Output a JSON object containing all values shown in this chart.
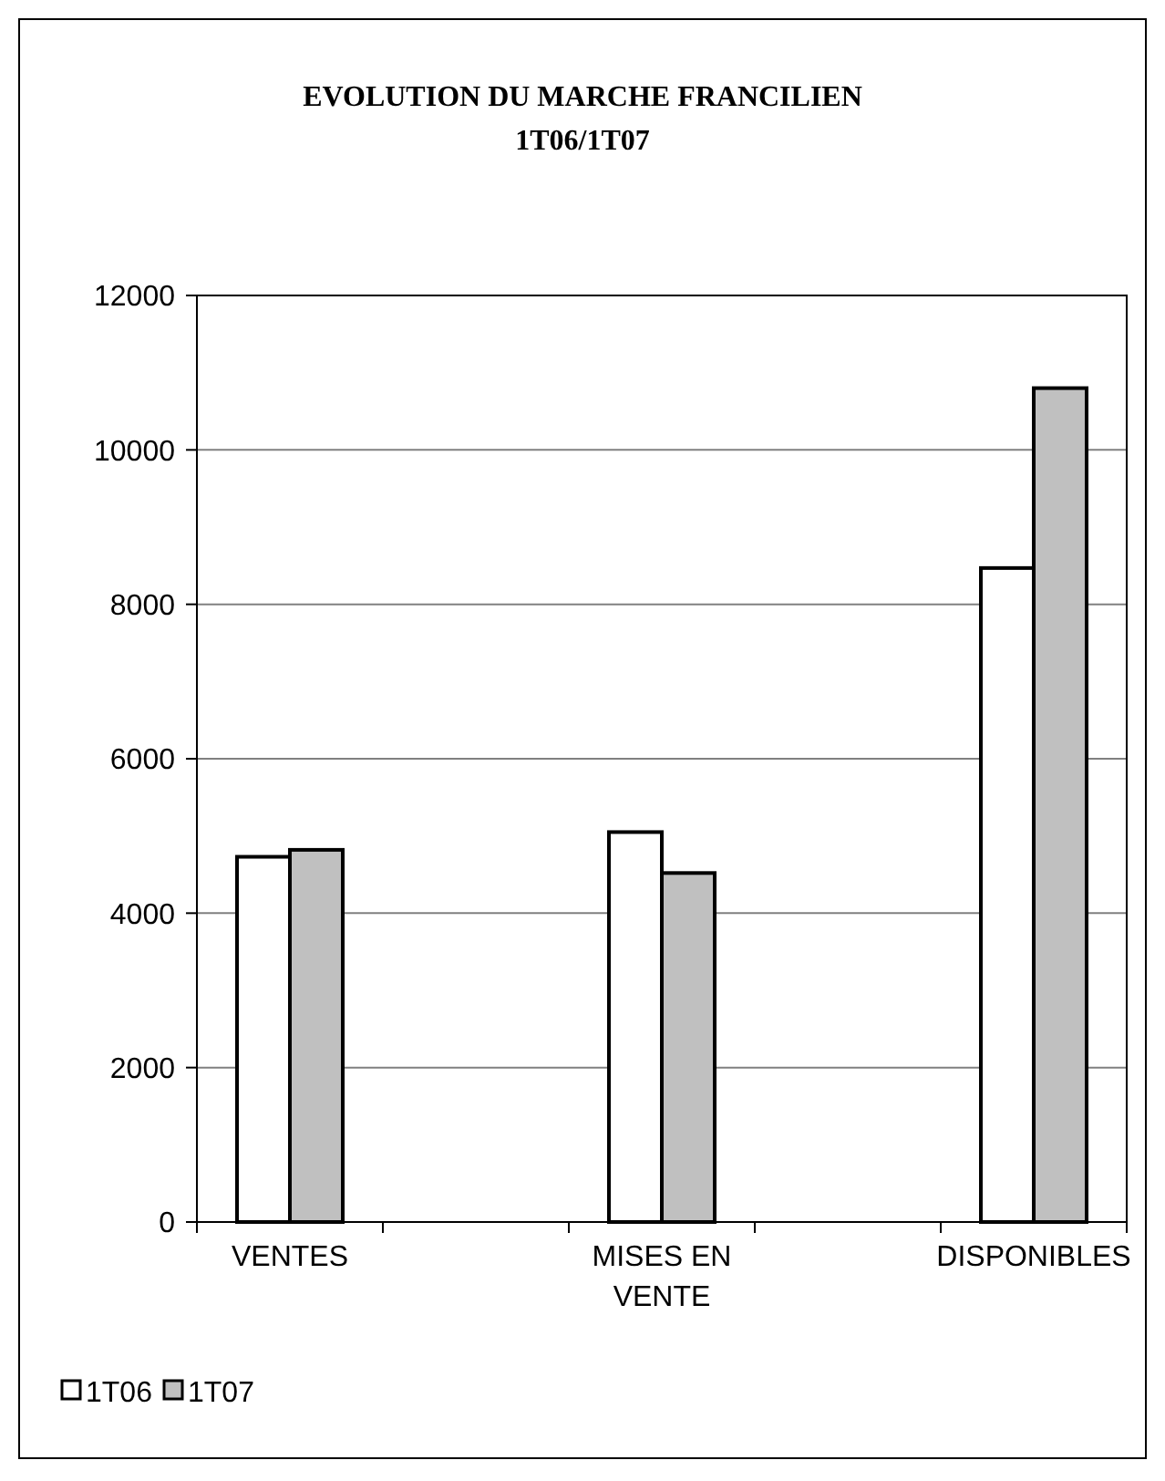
{
  "chart_data": {
    "type": "bar",
    "title": "EVOLUTION DU MARCHE FRANCILIEN\n1T06/1T07",
    "categories": [
      "VENTES",
      "MISES EN VENTE",
      "DISPONIBLES"
    ],
    "series": [
      {
        "name": "1T06",
        "color": "#ffffff",
        "values": [
          4730,
          5050,
          8470
        ]
      },
      {
        "name": "1T07",
        "color": "#c0c0c0",
        "values": [
          4820,
          4520,
          10800
        ]
      }
    ],
    "ylim": [
      0,
      12000
    ],
    "yticks": [
      0,
      2000,
      4000,
      6000,
      8000,
      10000,
      12000
    ],
    "grid": "y",
    "legend": "bottom left"
  }
}
